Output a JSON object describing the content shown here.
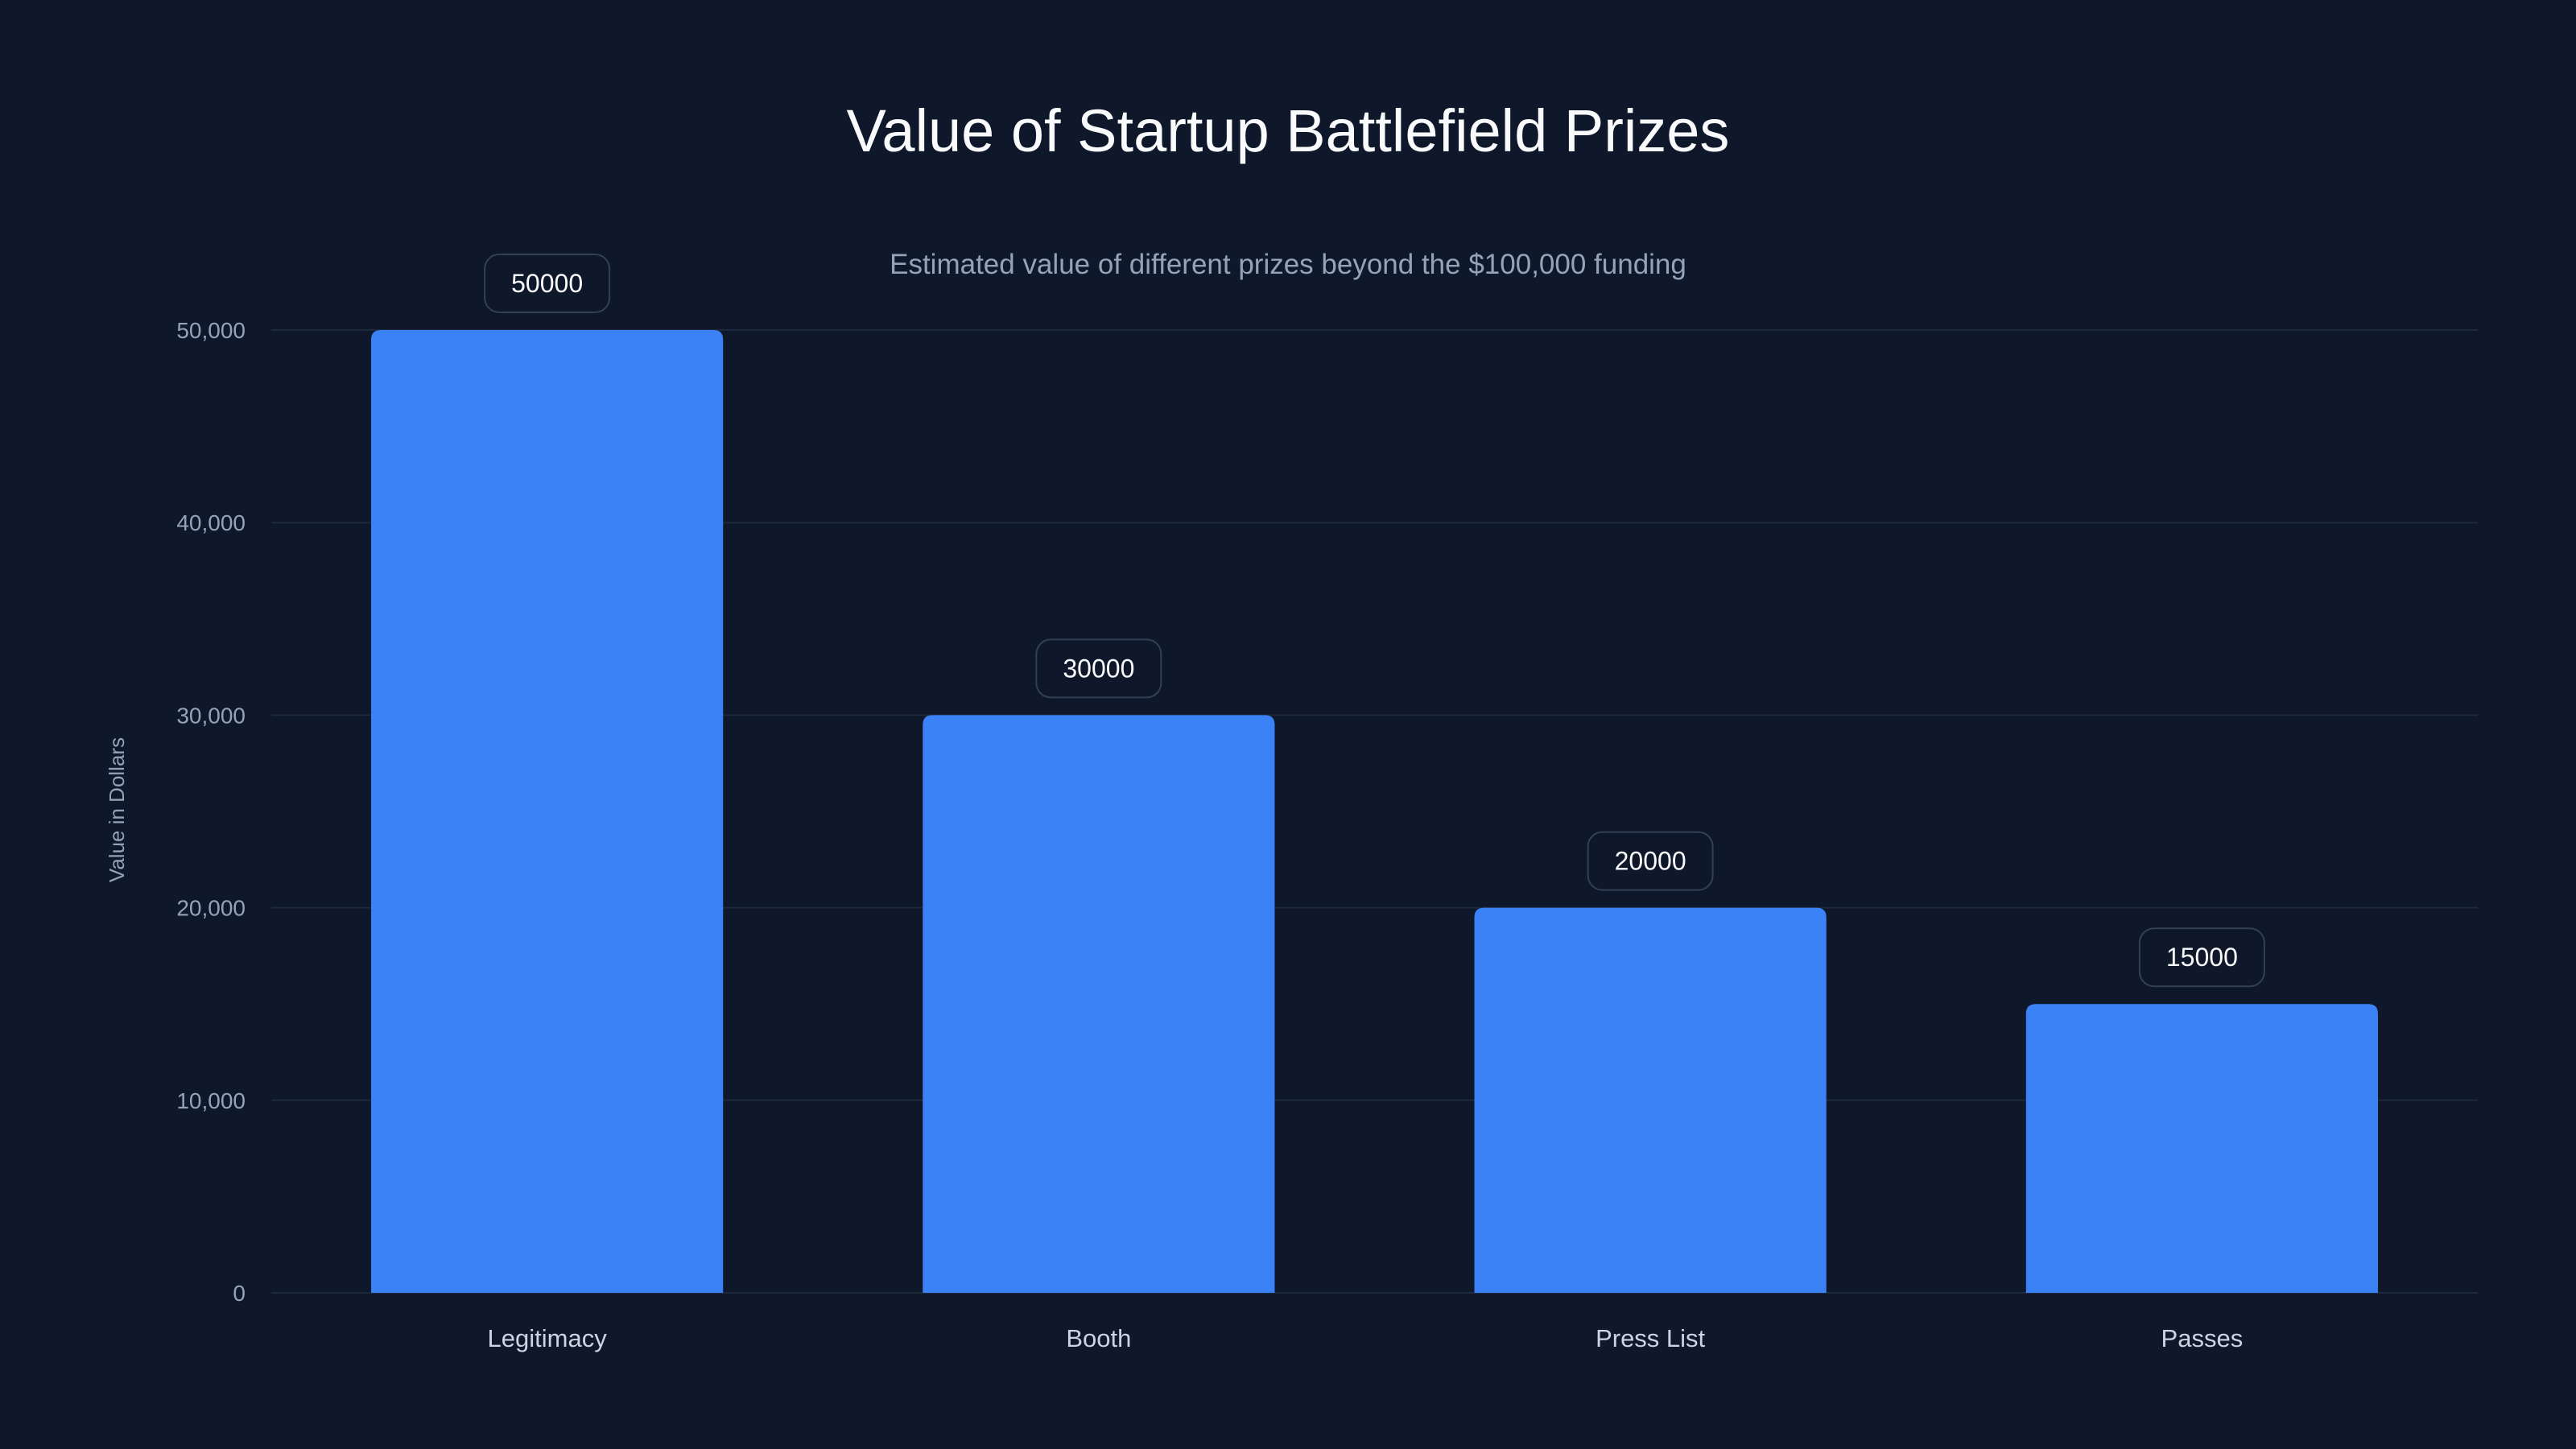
{
  "chart_data": {
    "type": "bar",
    "title": "Value of Startup Battlefield Prizes",
    "subtitle": "Estimated value of different prizes beyond the $100,000 funding",
    "xlabel": "",
    "ylabel": "Value in Dollars",
    "categories": [
      "Legitimacy",
      "Booth",
      "Press List",
      "Passes"
    ],
    "values": [
      50000,
      30000,
      20000,
      15000
    ],
    "data_labels": [
      "50000",
      "30000",
      "20000",
      "15000"
    ],
    "ylim": [
      0,
      50000
    ],
    "yticks": [
      0,
      10000,
      20000,
      30000,
      40000,
      50000
    ],
    "ytick_labels": [
      "0",
      "10,000",
      "20,000",
      "30,000",
      "40,000",
      "50,000"
    ],
    "grid": true,
    "legend": "none",
    "colors": {
      "background": "#0f172a",
      "bar": "#3b82f6",
      "grid": "#1e293b",
      "label_border": "#334155"
    }
  }
}
